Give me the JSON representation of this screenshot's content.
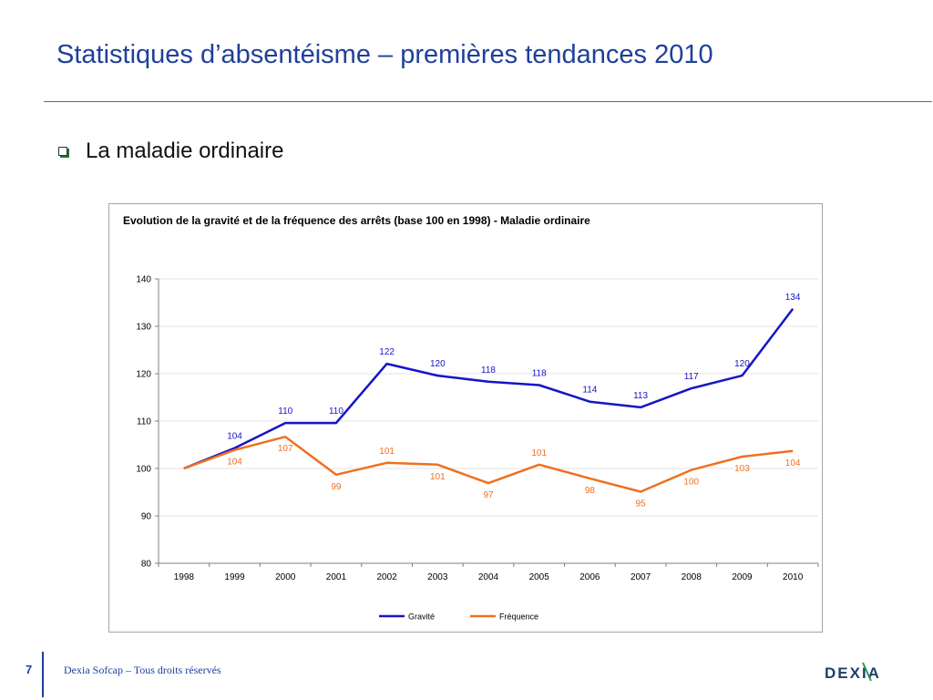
{
  "slide": {
    "title": "Statistiques d’absentéisme – premières tendances 2010",
    "bullet": "La maladie ordinaire"
  },
  "footer": {
    "page_number": "7",
    "text": "Dexia Sofcap – Tous droits réservés",
    "logo_text": "DEXIA"
  },
  "colors": {
    "title": "#1f3f9a",
    "gravite": "#1515c8",
    "frequence": "#f07020"
  },
  "chart_data": {
    "type": "line",
    "title": "Evolution de la gravité et de la fréquence des arrêts (base 100 en 1998) - Maladie ordinaire",
    "categories": [
      "1998",
      "1999",
      "2000",
      "2001",
      "2002",
      "2003",
      "2004",
      "2005",
      "2006",
      "2007",
      "2008",
      "2009",
      "2010"
    ],
    "ylim": [
      80,
      140
    ],
    "yticks": [
      80,
      90,
      100,
      110,
      120,
      130,
      140
    ],
    "grid": true,
    "legend_position": "bottom",
    "series": [
      {
        "name": "Gravité",
        "color": "#1515c8",
        "values": [
          100,
          104.3,
          109.6,
          109.6,
          122.1,
          119.6,
          118.3,
          117.6,
          114.1,
          112.9,
          116.9,
          119.6,
          133.7
        ],
        "labels": [
          "",
          "104",
          "110",
          "110",
          "122",
          "120",
          "118",
          "118",
          "114",
          "113",
          "117",
          "120",
          "134"
        ]
      },
      {
        "name": "Fréquence",
        "color": "#f07020",
        "values": [
          100,
          103.9,
          106.7,
          98.7,
          101.2,
          100.8,
          96.9,
          100.8,
          97.9,
          95.1,
          99.7,
          102.5,
          103.7
        ],
        "labels": [
          "",
          "104",
          "107",
          "99",
          "101",
          "101",
          "97",
          "101",
          "98",
          "95",
          "100",
          "103",
          "104"
        ]
      }
    ]
  }
}
